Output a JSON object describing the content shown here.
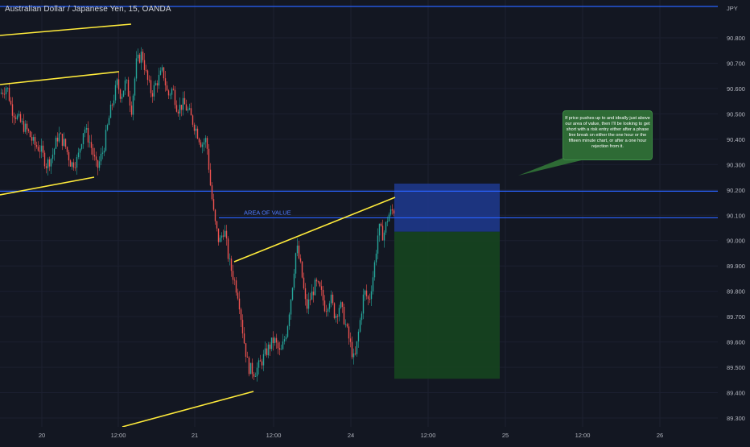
{
  "symbol_title": "Australian Dollar / Japanese Yen, 15, OANDA",
  "currency": "JPY",
  "annotation_text": "If price pushes up to and ideally just above our area of value, then I'll be looking to get short with a risk entry either after a phase line break on either the one hour or the fifteen minute chart, or after a one hour rejection from it.",
  "area_label": "AREA OF VALUE",
  "colors": {
    "background": "#131722",
    "up": "#26a69a",
    "down": "#ef5350",
    "trendline": "#ffeb3b",
    "hline": "#2962ff",
    "risk_zone": "#1e3a8a",
    "reward_zone": "#16451f",
    "note_bg": "#2e6b35"
  },
  "chart_data": {
    "type": "candlestick",
    "title": "Australian Dollar / Japanese Yen, 15, OANDA",
    "y_unit": "JPY",
    "ylim": [
      89.27,
      90.88
    ],
    "y_ticks": [
      "90.800",
      "90.700",
      "90.600",
      "90.500",
      "90.400",
      "90.300",
      "90.200",
      "90.100",
      "90.000",
      "89.900",
      "89.800",
      "89.700",
      "89.600",
      "89.500",
      "89.400",
      "89.300"
    ],
    "x_ticks": [
      "20",
      "12:00",
      "21",
      "12:00",
      "24",
      "12:00",
      "25",
      "12:00",
      "26"
    ],
    "grid": true,
    "price_path": [
      [
        0,
        90.58
      ],
      [
        8,
        90.61
      ],
      [
        14,
        90.52
      ],
      [
        24,
        90.47
      ],
      [
        34,
        90.43
      ],
      [
        42,
        90.38
      ],
      [
        50,
        90.36
      ],
      [
        57,
        90.3
      ],
      [
        64,
        90.33
      ],
      [
        72,
        90.42
      ],
      [
        80,
        90.38
      ],
      [
        88,
        90.3
      ],
      [
        96,
        90.32
      ],
      [
        104,
        90.45
      ],
      [
        112,
        90.38
      ],
      [
        120,
        90.28
      ],
      [
        128,
        90.36
      ],
      [
        136,
        90.5
      ],
      [
        145,
        90.62
      ],
      [
        150,
        90.57
      ],
      [
        156,
        90.63
      ],
      [
        163,
        90.52
      ],
      [
        169,
        90.7
      ],
      [
        176,
        90.74
      ],
      [
        182,
        90.64
      ],
      [
        188,
        90.58
      ],
      [
        195,
        90.63
      ],
      [
        202,
        90.67
      ],
      [
        208,
        90.57
      ],
      [
        214,
        90.6
      ],
      [
        220,
        90.52
      ],
      [
        228,
        90.54
      ],
      [
        235,
        90.5
      ],
      [
        243,
        90.44
      ],
      [
        250,
        90.38
      ],
      [
        256,
        90.4
      ],
      [
        261,
        90.22
      ],
      [
        266,
        90.08
      ],
      [
        272,
        89.99
      ],
      [
        278,
        90.05
      ],
      [
        284,
        89.92
      ],
      [
        290,
        89.85
      ],
      [
        296,
        89.78
      ],
      [
        302,
        89.62
      ],
      [
        308,
        89.5
      ],
      [
        316,
        89.48
      ],
      [
        324,
        89.52
      ],
      [
        332,
        89.57
      ],
      [
        340,
        89.61
      ],
      [
        348,
        89.55
      ],
      [
        356,
        89.65
      ],
      [
        362,
        89.8
      ],
      [
        368,
        89.98
      ],
      [
        374,
        89.88
      ],
      [
        380,
        89.73
      ],
      [
        386,
        89.78
      ],
      [
        392,
        89.83
      ],
      [
        398,
        89.8
      ],
      [
        404,
        89.73
      ],
      [
        410,
        89.78
      ],
      [
        416,
        89.7
      ],
      [
        422,
        89.75
      ],
      [
        428,
        89.68
      ],
      [
        434,
        89.6
      ],
      [
        440,
        89.52
      ],
      [
        446,
        89.66
      ],
      [
        452,
        89.8
      ],
      [
        458,
        89.76
      ],
      [
        464,
        89.88
      ],
      [
        470,
        90.05
      ],
      [
        476,
        90.02
      ],
      [
        482,
        90.1
      ],
      [
        488,
        90.12
      ]
    ],
    "horizontal_lines": [
      {
        "price": 90.88
      },
      {
        "price": 90.195
      },
      {
        "price": 90.09,
        "label": "AREA OF VALUE"
      }
    ],
    "trendlines": [
      {
        "from": [
          "19 ~17:30",
          90.855
        ],
        "to": [
          "20 ~10:00",
          90.885
        ]
      },
      {
        "from": [
          "19 ~17:30",
          90.64
        ],
        "to": [
          "20 ~12:00",
          90.67
        ]
      },
      {
        "from": [
          "19 ~17:30",
          90.19
        ],
        "to": [
          "20 ~09:00",
          90.255
        ]
      },
      {
        "from": [
          "21 ~04:00",
          89.915
        ],
        "to": [
          "24 ~04:30",
          90.165
        ]
      },
      {
        "from": [
          "20 ~12:00",
          89.29
        ],
        "to": [
          "21 ~10:00",
          89.42
        ]
      }
    ],
    "position_tool": {
      "type": "short",
      "entry": 90.035,
      "stop": 90.225,
      "target": 89.455
    }
  }
}
